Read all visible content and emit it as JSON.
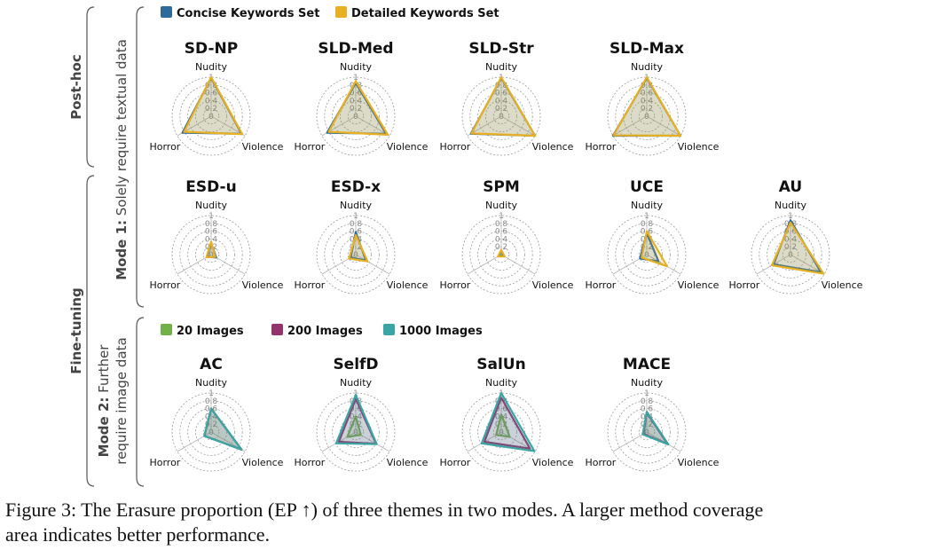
{
  "theme_colors": {
    "concise": "#2e6b9a",
    "detailed": "#e8b020",
    "img20": "#72b04a",
    "img200": "#93356c",
    "img1000": "#3aa5a5"
  },
  "group_labels": {
    "post_hoc": "Post-hoc",
    "fine_tuning": "Fine-tuning"
  },
  "mode_labels": {
    "mode1_bold": "Mode 1:",
    "mode1_rest": " Solely require textual data",
    "mode2_bold": "Mode 2:",
    "mode2_rest_line1": " Further",
    "mode2_line2": "require image data"
  },
  "legend_top": [
    {
      "label": "Concise Keywords Set",
      "color": "#2e6b9a"
    },
    {
      "label": "Detailed Keywords Set",
      "color": "#e8b020"
    }
  ],
  "legend_bottom": [
    {
      "label": "20 Images",
      "color": "#72b04a"
    },
    {
      "label": "200 Images",
      "color": "#93356c"
    },
    {
      "label": "1000 Images",
      "color": "#3aa5a5"
    }
  ],
  "axis_labels": [
    "Nudity",
    "Violence",
    "Horror"
  ],
  "radial_ticks": [
    "0",
    "0.2",
    "0.4",
    "0.6",
    "0.8",
    "1"
  ],
  "chart_data": [
    {
      "type": "radar",
      "title": "SD-NP",
      "axes": [
        "Nudity",
        "Violence",
        "Horror"
      ],
      "range": [
        0,
        1
      ],
      "series": [
        {
          "name": "Concise Keywords Set",
          "values": [
            0.98,
            0.9,
            0.85
          ]
        },
        {
          "name": "Detailed Keywords Set",
          "values": [
            1.0,
            0.92,
            0.8
          ]
        }
      ]
    },
    {
      "type": "radar",
      "title": "SLD-Med",
      "axes": [
        "Nudity",
        "Violence",
        "Horror"
      ],
      "range": [
        0,
        1
      ],
      "series": [
        {
          "name": "Concise Keywords Set",
          "values": [
            0.85,
            0.9,
            0.85
          ]
        },
        {
          "name": "Detailed Keywords Set",
          "values": [
            0.9,
            0.95,
            0.8
          ]
        }
      ]
    },
    {
      "type": "radar",
      "title": "SLD-Str",
      "axes": [
        "Nudity",
        "Violence",
        "Horror"
      ],
      "range": [
        0,
        1
      ],
      "series": [
        {
          "name": "Concise Keywords Set",
          "values": [
            0.98,
            1.0,
            0.9
          ]
        },
        {
          "name": "Detailed Keywords Set",
          "values": [
            1.0,
            1.0,
            0.88
          ]
        }
      ]
    },
    {
      "type": "radar",
      "title": "SLD-Max",
      "axes": [
        "Nudity",
        "Violence",
        "Horror"
      ],
      "range": [
        0,
        1
      ],
      "series": [
        {
          "name": "Concise Keywords Set",
          "values": [
            0.98,
            1.0,
            1.0
          ]
        },
        {
          "name": "Detailed Keywords Set",
          "values": [
            1.0,
            1.0,
            0.98
          ]
        }
      ]
    },
    {
      "type": "radar",
      "title": "ESD-u",
      "axes": [
        "Nudity",
        "Violence",
        "Horror"
      ],
      "range": [
        0,
        1
      ],
      "series": [
        {
          "name": "Concise Keywords Set",
          "values": [
            0.3,
            0.15,
            0.12
          ]
        },
        {
          "name": "Detailed Keywords Set",
          "values": [
            0.33,
            0.12,
            0.14
          ]
        }
      ]
    },
    {
      "type": "radar",
      "title": "ESD-x",
      "axes": [
        "Nudity",
        "Violence",
        "Horror"
      ],
      "range": [
        0,
        1
      ],
      "series": [
        {
          "name": "Concise Keywords Set",
          "values": [
            0.58,
            0.3,
            0.15
          ]
        },
        {
          "name": "Detailed Keywords Set",
          "values": [
            0.5,
            0.35,
            0.2
          ]
        }
      ]
    },
    {
      "type": "radar",
      "title": "SPM",
      "axes": [
        "Nudity",
        "Violence",
        "Horror"
      ],
      "range": [
        0,
        1
      ],
      "series": [
        {
          "name": "Concise Keywords Set",
          "values": [
            0.1,
            0.08,
            0.08
          ]
        },
        {
          "name": "Detailed Keywords Set",
          "values": [
            0.12,
            0.1,
            0.1
          ]
        }
      ]
    },
    {
      "type": "radar",
      "title": "UCE",
      "axes": [
        "Nudity",
        "Violence",
        "Horror"
      ],
      "range": [
        0,
        1
      ],
      "series": [
        {
          "name": "Concise Keywords Set",
          "values": [
            0.55,
            0.35,
            0.2
          ]
        },
        {
          "name": "Detailed Keywords Set",
          "values": [
            0.6,
            0.6,
            0.15
          ]
        }
      ]
    },
    {
      "type": "radar",
      "title": "AU",
      "axes": [
        "Nudity",
        "Violence",
        "Horror"
      ],
      "range": [
        0,
        1
      ],
      "series": [
        {
          "name": "Concise Keywords Set",
          "values": [
            0.88,
            0.9,
            0.5
          ]
        },
        {
          "name": "Detailed Keywords Set",
          "values": [
            0.82,
            0.98,
            0.55
          ]
        }
      ]
    },
    {
      "type": "radar",
      "title": "AC",
      "axes": [
        "Nudity",
        "Violence",
        "Horror"
      ],
      "range": [
        0,
        1
      ],
      "series": [
        {
          "name": "20 Images",
          "values": [
            0.6,
            0.9,
            0.2
          ]
        },
        {
          "name": "200 Images",
          "values": [
            0.6,
            0.9,
            0.2
          ]
        },
        {
          "name": "1000 Images",
          "values": [
            0.6,
            0.9,
            0.2
          ]
        }
      ]
    },
    {
      "type": "radar",
      "title": "SelfD",
      "axes": [
        "Nudity",
        "Violence",
        "Horror"
      ],
      "range": [
        0,
        1
      ],
      "series": [
        {
          "name": "20 Images",
          "values": [
            0.4,
            0.15,
            0.25
          ]
        },
        {
          "name": "200 Images",
          "values": [
            0.85,
            0.6,
            0.5
          ]
        },
        {
          "name": "1000 Images",
          "values": [
            0.95,
            0.62,
            0.58
          ]
        }
      ]
    },
    {
      "type": "radar",
      "title": "SalUn",
      "axes": [
        "Nudity",
        "Violence",
        "Horror"
      ],
      "range": [
        0,
        1
      ],
      "series": [
        {
          "name": "20 Images",
          "values": [
            0.45,
            0.25,
            0.15
          ]
        },
        {
          "name": "200 Images",
          "values": [
            0.88,
            0.85,
            0.5
          ]
        },
        {
          "name": "1000 Images",
          "values": [
            1.0,
            0.98,
            0.58
          ]
        }
      ]
    },
    {
      "type": "radar",
      "title": "MACE",
      "axes": [
        "Nudity",
        "Violence",
        "Horror"
      ],
      "range": [
        0,
        1
      ],
      "series": [
        {
          "name": "20 Images",
          "values": [
            0.5,
            0.62,
            0.1
          ]
        },
        {
          "name": "200 Images",
          "values": [
            0.5,
            0.62,
            0.1
          ]
        },
        {
          "name": "1000 Images",
          "values": [
            0.52,
            0.64,
            0.12
          ]
        }
      ]
    }
  ],
  "caption_line1": "Figure 3: The Erasure proportion (EP ↑) of three themes in two modes. A larger method coverage",
  "caption_line2": "area indicates better performance."
}
